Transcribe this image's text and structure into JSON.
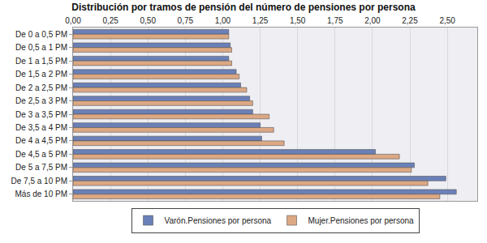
{
  "chart_data": {
    "type": "bar",
    "orientation": "horizontal",
    "title": "Distribución por tramos de pensión del número de pensiones por persona",
    "categories": [
      "De 0 a 0,5 PM",
      "De 0,5 a 1 PM",
      "De 1 a 1,5 PM",
      "De 1,5 a 2 PM",
      "De 2 a 2,5 PM",
      "De 2,5 a 3 PM",
      "De 3 a 3,5 PM",
      "De 3,5 a 4 PM",
      "De 4 a 4,5 PM",
      "De 4,5 a 5 PM",
      "De 5 a 7,5 PM",
      "De 7,5 a 10 PM",
      "Más de 10 PM"
    ],
    "series": [
      {
        "name": "Varón.Pensiones por persona",
        "color": "#6a80b8",
        "values": [
          1.04,
          1.05,
          1.04,
          1.09,
          1.12,
          1.18,
          1.2,
          1.25,
          1.26,
          2.02,
          2.28,
          2.49,
          2.56
        ]
      },
      {
        "name": "Mujer.Pensiones por persona",
        "color": "#dca884",
        "values": [
          1.04,
          1.06,
          1.06,
          1.11,
          1.16,
          1.2,
          1.31,
          1.34,
          1.41,
          2.18,
          2.26,
          2.37,
          2.45
        ]
      }
    ],
    "xlim": [
      0,
      2.7
    ],
    "xticks": [
      {
        "value": 0,
        "label": "0,00"
      },
      {
        "value": 0.25,
        "label": "0,25"
      },
      {
        "value": 0.5,
        "label": "0,50"
      },
      {
        "value": 0.75,
        "label": "0,75"
      },
      {
        "value": 1,
        "label": "1,00"
      },
      {
        "value": 1.25,
        "label": "1,25"
      },
      {
        "value": 1.5,
        "label": "1,50"
      },
      {
        "value": 1.75,
        "label": "1,75"
      },
      {
        "value": 2,
        "label": "2,00"
      },
      {
        "value": 2.25,
        "label": "2,25"
      },
      {
        "value": 2.5,
        "label": "2,50"
      }
    ],
    "grid": true,
    "legend": "bottom"
  }
}
